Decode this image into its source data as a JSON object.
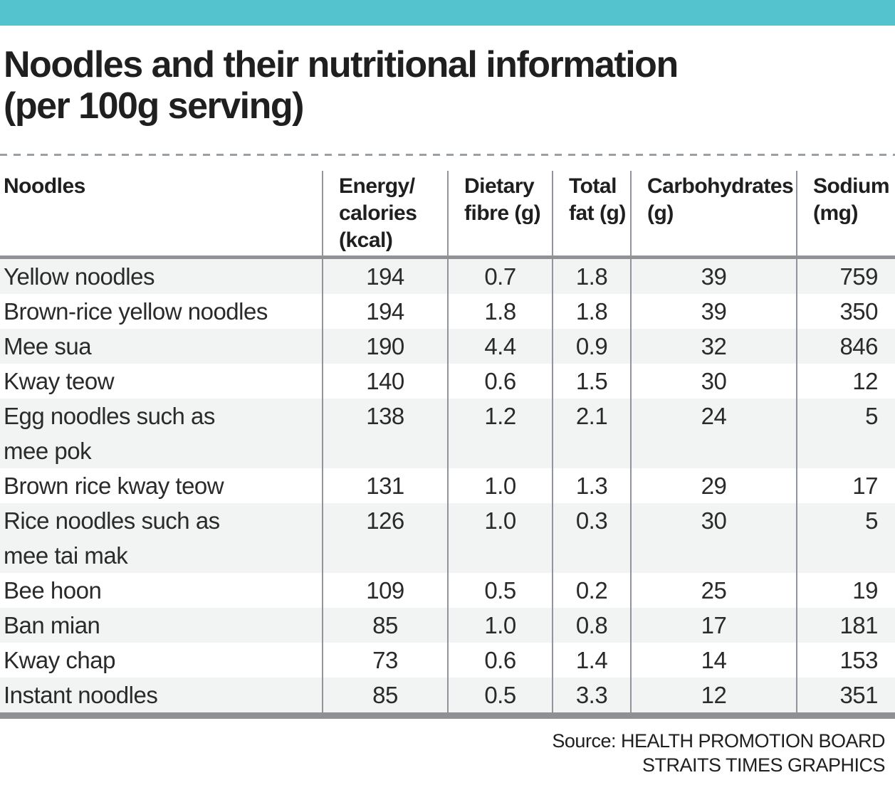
{
  "page": {
    "accent_color": "#55c3ce",
    "title": "Noodles and their nutritional information\n(per 100g serving)"
  },
  "table": {
    "header": [
      "Noodles",
      "Energy/\ncalories\n(kcal)",
      "Dietary\nfibre (g)",
      "Total\nfat (g)",
      "Carbohydrates\n(g)",
      "Sodium\n(mg)"
    ],
    "rows": [
      {
        "name": "Yellow noodles",
        "values": [
          "194",
          "0.7",
          "1.8",
          "39",
          "759"
        ]
      },
      {
        "name": "Brown-rice yellow noodles",
        "values": [
          "194",
          "1.8",
          "1.8",
          "39",
          "350"
        ]
      },
      {
        "name": "Mee sua",
        "values": [
          "190",
          "4.4",
          "0.9",
          "32",
          "846"
        ]
      },
      {
        "name": "Kway teow",
        "values": [
          "140",
          "0.6",
          "1.5",
          "30",
          "12"
        ]
      },
      {
        "name": "Egg noodles such as\nmee pok",
        "values": [
          "138",
          "1.2",
          "2.1",
          "24",
          "5"
        ]
      },
      {
        "name": "Brown rice kway teow",
        "values": [
          "131",
          "1.0",
          "1.3",
          "29",
          "17"
        ]
      },
      {
        "name": "Rice noodles such as\nmee tai mak",
        "values": [
          "126",
          "1.0",
          "0.3",
          "30",
          "5"
        ]
      },
      {
        "name": "Bee hoon",
        "values": [
          "109",
          "0.5",
          "0.2",
          "25",
          "19"
        ]
      },
      {
        "name": "Ban mian",
        "values": [
          "85",
          "1.0",
          "0.8",
          "17",
          "181"
        ]
      },
      {
        "name": "Kway chap",
        "values": [
          "73",
          "0.6",
          "1.4",
          "14",
          "153"
        ]
      },
      {
        "name": "Instant noodles",
        "values": [
          "85",
          "0.5",
          "3.3",
          "12",
          "351"
        ]
      }
    ]
  },
  "footer": {
    "source_line": "Source: HEALTH PROMOTION BOARD",
    "credit_line": "STRAITS TIMES GRAPHICS"
  },
  "chart_data": {
    "type": "table",
    "title": "Noodles and their nutritional information (per 100g serving)",
    "columns": [
      "Noodles",
      "Energy/calories (kcal)",
      "Dietary fibre (g)",
      "Total fat (g)",
      "Carbohydrates (g)",
      "Sodium (mg)"
    ],
    "rows": [
      [
        "Yellow noodles",
        194,
        0.7,
        1.8,
        39,
        759
      ],
      [
        "Brown-rice yellow noodles",
        194,
        1.8,
        1.8,
        39,
        350
      ],
      [
        "Mee sua",
        190,
        4.4,
        0.9,
        32,
        846
      ],
      [
        "Kway teow",
        140,
        0.6,
        1.5,
        30,
        12
      ],
      [
        "Egg noodles such as mee pok",
        138,
        1.2,
        2.1,
        24,
        5
      ],
      [
        "Brown rice kway teow",
        131,
        1.0,
        1.3,
        29,
        17
      ],
      [
        "Rice noodles such as mee tai mak",
        126,
        1.0,
        0.3,
        30,
        5
      ],
      [
        "Bee hoon",
        109,
        0.5,
        0.2,
        25,
        19
      ],
      [
        "Ban mian",
        85,
        1.0,
        0.8,
        17,
        181
      ],
      [
        "Kway chap",
        73,
        0.6,
        1.4,
        14,
        153
      ],
      [
        "Instant noodles",
        85,
        0.5,
        3.3,
        12,
        351
      ]
    ],
    "source": "HEALTH PROMOTION BOARD",
    "credit": "STRAITS TIMES GRAPHICS"
  }
}
